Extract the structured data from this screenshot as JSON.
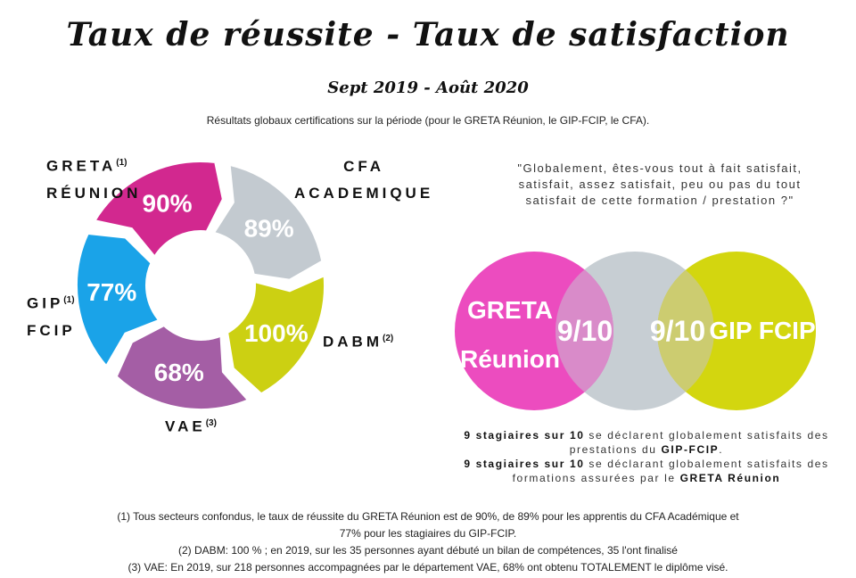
{
  "title": "Taux de réussite - Taux de satisfaction",
  "subtitle": "Sept 2019 - Août 2020",
  "intro": "Résultats globaux certifications sur la période (pour le GRETA Réunion, le GIP-FCIP, le CFA).",
  "donut": [
    {
      "name": "GRETA Réunion",
      "label1": "GRETA",
      "label2": "RÉUNION",
      "note": "(1)",
      "value": "90%",
      "color": "#d2288f"
    },
    {
      "name": "CFA Académique",
      "label1": "CFA",
      "label2": "ACADEMIQUE",
      "note": "",
      "value": "89%",
      "color": "#c3cad0"
    },
    {
      "name": "DABM",
      "label1": "DABM",
      "label2": "",
      "note": "(2)",
      "value": "100%",
      "color": "#ccd012"
    },
    {
      "name": "VAE",
      "label1": "VAE",
      "label2": "",
      "note": "(3)",
      "value": "68%",
      "color": "#a45ea5"
    },
    {
      "name": "GIP FCIP",
      "label1": "GIP",
      "label2": "FCIP",
      "note": "(1)",
      "value": "77%",
      "color": "#1aa3e8"
    }
  ],
  "quote": "\"Globalement, êtes-vous tout à fait satisfait, satisfait, assez satisfait, peu ou pas du tout satisfait de cette formation / prestation ?\"",
  "venn": {
    "left_label1": "GRETA",
    "left_label2": "Réunion",
    "left_score": "9/10",
    "right_score": "9/10",
    "right_label": "GIP FCIP",
    "colors": {
      "left": "#ec4cbf",
      "middle": "#c7ced3",
      "right": "#d3d60f",
      "left_overlap": "#d98bc9",
      "right_overlap": "#cccc70"
    }
  },
  "satisfaction": {
    "line1_bold": "9 stagiaires sur 10",
    "line1_rest": " se déclarent globalement satisfaits des prestations du ",
    "line1_org": "GIP-FCIP",
    "line1_end": ".",
    "line2_bold": "9 stagiaires sur 10",
    "line2_rest": " se déclarant globalement satisfaits des formations assurées par le ",
    "line2_org": "GRETA Réunion"
  },
  "notes": [
    "(1) Tous secteurs confondus, le taux de réussite du GRETA Réunion est de 90%, de 89% pour les apprentis du CFA Académique et",
    "77% pour les stagiaires du GIP-FCIP.",
    "(2) DABM: 100 % ; en 2019, sur les 35 personnes ayant débuté un bilan de compétences, 35 l'ont finalisé",
    "(3) VAE: En 2019, sur 218 personnes accompagnées par le département VAE, 68% ont obtenu TOTALEMENT le diplôme visé."
  ]
}
